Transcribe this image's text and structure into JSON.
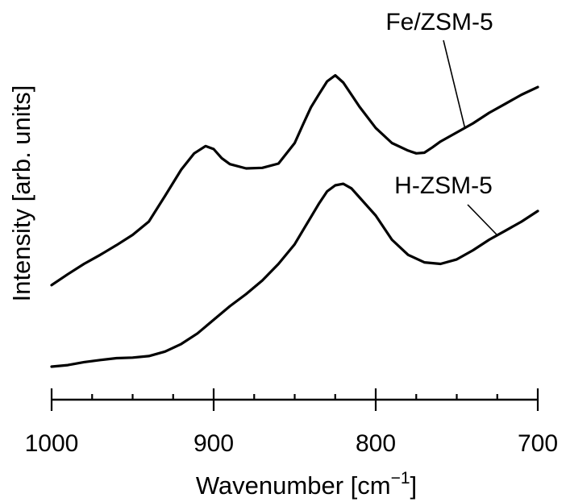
{
  "chart_data": {
    "type": "line",
    "xlabel": "Wavenumber [cm−1]",
    "xlabel_main": "Wavenumber [cm",
    "xlabel_sup": "−1",
    "xlabel_close": "]",
    "ylabel": "Intensity [arb. units]",
    "xlim": [
      1000,
      700
    ],
    "x_reversed": true,
    "ylim": [
      0,
      1
    ],
    "y_ticks_shown": false,
    "grid": false,
    "legend": "inline labels with leader lines",
    "x_ticks": [
      1000,
      900,
      800,
      700
    ],
    "x_tick_labels": [
      "1000",
      "900",
      "800",
      "700"
    ],
    "x_minor_ticks": [
      975,
      950,
      925,
      875,
      850,
      825,
      775,
      750,
      725
    ],
    "series": [
      {
        "name": "Fe/ZSM-5",
        "label_at": 745,
        "x": [
          1000,
          990,
          980,
          970,
          960,
          950,
          940,
          930,
          920,
          912,
          905,
          900,
          895,
          890,
          880,
          870,
          860,
          850,
          845,
          840,
          835,
          830,
          825,
          820,
          815,
          810,
          800,
          790,
          780,
          775,
          770,
          765,
          760,
          750,
          740,
          730,
          720,
          710,
          700
        ],
        "y": [
          0.27,
          0.306,
          0.34,
          0.37,
          0.402,
          0.436,
          0.48,
          0.565,
          0.652,
          0.706,
          0.73,
          0.72,
          0.69,
          0.67,
          0.656,
          0.658,
          0.672,
          0.74,
          0.8,
          0.858,
          0.902,
          0.944,
          0.964,
          0.94,
          0.9,
          0.86,
          0.79,
          0.74,
          0.715,
          0.706,
          0.708,
          0.726,
          0.745,
          0.775,
          0.805,
          0.84,
          0.87,
          0.9,
          0.925
        ]
      },
      {
        "name": "H-ZSM-5",
        "label_at": 725,
        "x": [
          1000,
          990,
          980,
          970,
          960,
          950,
          940,
          930,
          920,
          910,
          900,
          890,
          880,
          870,
          860,
          850,
          840,
          835,
          830,
          825,
          820,
          815,
          810,
          800,
          790,
          780,
          770,
          760,
          750,
          740,
          730,
          720,
          710,
          700
        ],
        "y": [
          0.0,
          0.005,
          0.015,
          0.022,
          0.028,
          0.03,
          0.035,
          0.05,
          0.075,
          0.11,
          0.155,
          0.2,
          0.24,
          0.285,
          0.34,
          0.405,
          0.495,
          0.54,
          0.58,
          0.6,
          0.605,
          0.59,
          0.56,
          0.5,
          0.42,
          0.37,
          0.345,
          0.34,
          0.355,
          0.385,
          0.42,
          0.45,
          0.48,
          0.515
        ]
      }
    ]
  }
}
